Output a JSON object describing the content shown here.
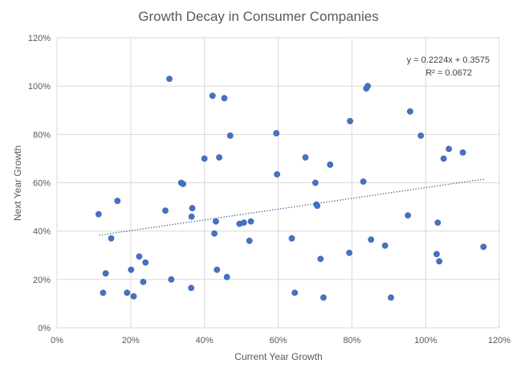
{
  "chart_data": {
    "type": "scatter",
    "title": "Growth Decay in Consumer Companies",
    "xlabel": "Current Year Growth",
    "ylabel": "Next Year Growth",
    "xlim": [
      0,
      1.2
    ],
    "ylim": [
      0,
      1.2
    ],
    "x_ticks": [
      "0%",
      "20%",
      "40%",
      "60%",
      "80%",
      "100%",
      "120%"
    ],
    "y_ticks": [
      "0%",
      "20%",
      "40%",
      "60%",
      "80%",
      "100%",
      "120%"
    ],
    "grid": true,
    "legend": "none",
    "colors": {
      "points": "#4472c4",
      "trendline": "#2f528f",
      "grid": "#d9d9d9",
      "text": "#595959"
    },
    "trendline": {
      "type": "linear",
      "slope": 0.2224,
      "intercept": 0.3575,
      "x_range": [
        0.115,
        1.16
      ],
      "equation_label": "y = 0.2224x + 0.3575",
      "r2_label": "R² = 0.0672"
    },
    "points": [
      {
        "x": 0.113,
        "y": 0.47
      },
      {
        "x": 0.125,
        "y": 0.145
      },
      {
        "x": 0.132,
        "y": 0.225
      },
      {
        "x": 0.147,
        "y": 0.37
      },
      {
        "x": 0.164,
        "y": 0.525
      },
      {
        "x": 0.19,
        "y": 0.145
      },
      {
        "x": 0.201,
        "y": 0.24
      },
      {
        "x": 0.208,
        "y": 0.13
      },
      {
        "x": 0.223,
        "y": 0.295
      },
      {
        "x": 0.234,
        "y": 0.19
      },
      {
        "x": 0.24,
        "y": 0.27
      },
      {
        "x": 0.294,
        "y": 0.485
      },
      {
        "x": 0.305,
        "y": 1.03
      },
      {
        "x": 0.31,
        "y": 0.2
      },
      {
        "x": 0.337,
        "y": 0.6
      },
      {
        "x": 0.342,
        "y": 0.595
      },
      {
        "x": 0.364,
        "y": 0.165
      },
      {
        "x": 0.365,
        "y": 0.46
      },
      {
        "x": 0.367,
        "y": 0.495
      },
      {
        "x": 0.4,
        "y": 0.7
      },
      {
        "x": 0.422,
        "y": 0.96
      },
      {
        "x": 0.427,
        "y": 0.39
      },
      {
        "x": 0.431,
        "y": 0.44
      },
      {
        "x": 0.434,
        "y": 0.24
      },
      {
        "x": 0.44,
        "y": 0.705
      },
      {
        "x": 0.454,
        "y": 0.95
      },
      {
        "x": 0.461,
        "y": 0.21
      },
      {
        "x": 0.47,
        "y": 0.795
      },
      {
        "x": 0.495,
        "y": 0.43
      },
      {
        "x": 0.507,
        "y": 0.435
      },
      {
        "x": 0.522,
        "y": 0.36
      },
      {
        "x": 0.526,
        "y": 0.44
      },
      {
        "x": 0.595,
        "y": 0.805
      },
      {
        "x": 0.597,
        "y": 0.635
      },
      {
        "x": 0.637,
        "y": 0.37
      },
      {
        "x": 0.645,
        "y": 0.145
      },
      {
        "x": 0.674,
        "y": 0.705
      },
      {
        "x": 0.701,
        "y": 0.6
      },
      {
        "x": 0.704,
        "y": 0.51
      },
      {
        "x": 0.706,
        "y": 0.505
      },
      {
        "x": 0.715,
        "y": 0.285
      },
      {
        "x": 0.723,
        "y": 0.125
      },
      {
        "x": 0.741,
        "y": 0.675
      },
      {
        "x": 0.793,
        "y": 0.31
      },
      {
        "x": 0.795,
        "y": 0.855
      },
      {
        "x": 0.831,
        "y": 0.605
      },
      {
        "x": 0.839,
        "y": 0.99
      },
      {
        "x": 0.843,
        "y": 1.0
      },
      {
        "x": 0.852,
        "y": 0.365
      },
      {
        "x": 0.89,
        "y": 0.34
      },
      {
        "x": 0.906,
        "y": 0.125
      },
      {
        "x": 0.952,
        "y": 0.465
      },
      {
        "x": 0.958,
        "y": 0.895
      },
      {
        "x": 0.987,
        "y": 0.795
      },
      {
        "x": 1.03,
        "y": 0.305
      },
      {
        "x": 1.033,
        "y": 0.435
      },
      {
        "x": 1.037,
        "y": 0.275
      },
      {
        "x": 1.049,
        "y": 0.7
      },
      {
        "x": 1.063,
        "y": 0.74
      },
      {
        "x": 1.101,
        "y": 0.725
      },
      {
        "x": 1.157,
        "y": 0.335
      }
    ]
  }
}
